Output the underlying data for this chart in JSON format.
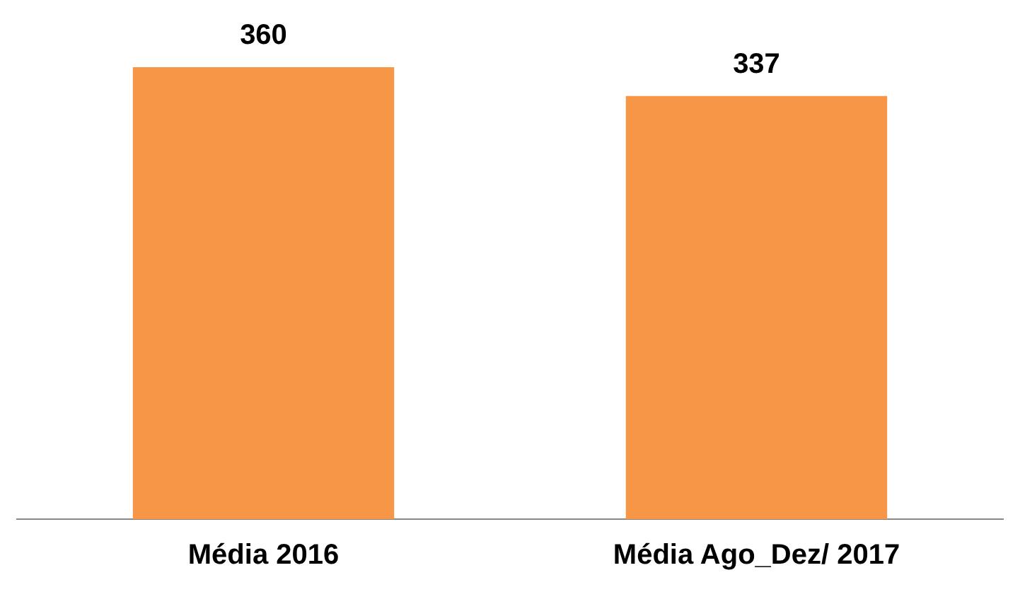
{
  "chart_data": {
    "type": "bar",
    "categories": [
      "Média 2016",
      "Média Ago_Dez/ 2017"
    ],
    "values": [
      360,
      337
    ],
    "color": "#f79646",
    "data_labels": true,
    "grid": false,
    "legend": false
  }
}
